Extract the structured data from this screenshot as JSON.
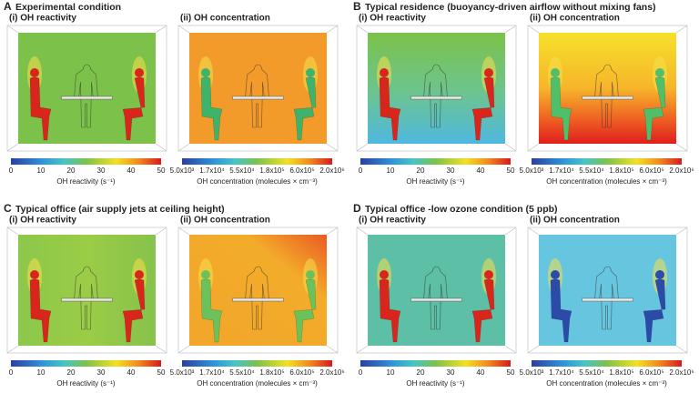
{
  "panels": [
    {
      "letter": "A",
      "title": "Experimental condition",
      "subplots": [
        {
          "label": "(i) OH reactivity",
          "colorbar": {
            "ticks": [
              "0",
              "10",
              "20",
              "30",
              "40",
              "50"
            ],
            "label": "OH reactivity (s⁻¹)"
          }
        },
        {
          "label": "(ii) OH concentration",
          "colorbar": {
            "ticks": [
              "5.0x10³",
              "1.7x10⁴",
              "5.5x10⁴",
              "1.8x10⁵",
              "6.0x10⁵",
              "2.0x10⁶"
            ],
            "label": "OH concentration (molecules × cm⁻³)"
          }
        }
      ]
    },
    {
      "letter": "B",
      "title": "Typical residence (buoyancy-driven airflow without mixing fans)",
      "subplots": [
        {
          "label": "(i) OH reactivity",
          "colorbar": {
            "ticks": [
              "0",
              "10",
              "20",
              "30",
              "40",
              "50"
            ],
            "label": "OH reactivity (s⁻¹)"
          }
        },
        {
          "label": "(ii) OH concentration",
          "colorbar": {
            "ticks": [
              "5.0x10³",
              "1.7x10⁴",
              "5.5x10⁴",
              "1.8x10⁵",
              "6.0x10⁵",
              "2.0x10⁶"
            ],
            "label": "OH concentration (molecules × cm⁻³)"
          }
        }
      ]
    },
    {
      "letter": "C",
      "title": "Typical office (air supply jets at ceiling height)",
      "subplots": [
        {
          "label": "(i) OH reactivity",
          "colorbar": {
            "ticks": [
              "0",
              "10",
              "20",
              "30",
              "40",
              "50"
            ],
            "label": "OH reactivity (s⁻¹)"
          }
        },
        {
          "label": "(ii) OH concentration",
          "colorbar": {
            "ticks": [
              "5.0x10³",
              "1.7x10⁴",
              "5.5x10⁴",
              "1.8x10⁵",
              "6.0x10⁵",
              "2.0x10⁶"
            ],
            "label": "OH concentration (molecules × cm⁻³)"
          }
        }
      ]
    },
    {
      "letter": "D",
      "title": "Typical office -low ozone condition (5 ppb)",
      "subplots": [
        {
          "label": "(i) OH reactivity",
          "colorbar": {
            "ticks": [
              "0",
              "10",
              "20",
              "30",
              "40",
              "50"
            ],
            "label": "OH reactivity (s⁻¹)"
          }
        },
        {
          "label": "(ii) OH concentration",
          "colorbar": {
            "ticks": [
              "5.0x10³",
              "1.7x10⁴",
              "5.5x10⁴",
              "1.8x10⁵",
              "6.0x10⁵",
              "2.0x10⁶"
            ],
            "label": "OH concentration (molecules × cm⁻³)"
          }
        }
      ]
    }
  ]
}
